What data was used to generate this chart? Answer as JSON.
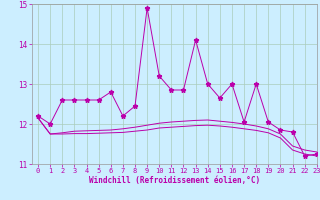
{
  "xlabel": "Windchill (Refroidissement éolien,°C)",
  "background_color": "#cceeff",
  "grid_color": "#aaccbb",
  "line_color": "#bb00aa",
  "xlim": [
    -0.5,
    23
  ],
  "ylim": [
    11,
    15
  ],
  "yticks": [
    11,
    12,
    13,
    14,
    15
  ],
  "xticks": [
    0,
    1,
    2,
    3,
    4,
    5,
    6,
    7,
    8,
    9,
    10,
    11,
    12,
    13,
    14,
    15,
    16,
    17,
    18,
    19,
    20,
    21,
    22,
    23
  ],
  "series1_x": [
    0,
    1,
    2,
    3,
    4,
    5,
    6,
    7,
    8,
    9,
    10,
    11,
    12,
    13,
    14,
    15,
    16,
    17,
    18,
    19,
    20,
    21,
    22,
    23
  ],
  "series1_y": [
    12.2,
    12.0,
    12.6,
    12.6,
    12.6,
    12.6,
    12.8,
    12.2,
    12.45,
    14.9,
    13.2,
    12.85,
    12.85,
    14.1,
    13.0,
    12.65,
    13.0,
    12.05,
    13.0,
    12.05,
    11.85,
    11.8,
    11.2,
    11.25
  ],
  "series2_x": [
    0,
    1,
    2,
    3,
    4,
    5,
    6,
    7,
    8,
    9,
    10,
    11,
    12,
    13,
    14,
    15,
    16,
    17,
    18,
    19,
    20,
    21,
    22,
    23
  ],
  "series2_y": [
    12.15,
    11.75,
    11.75,
    11.76,
    11.76,
    11.77,
    11.78,
    11.79,
    11.82,
    11.85,
    11.9,
    11.92,
    11.94,
    11.96,
    11.97,
    11.95,
    11.92,
    11.88,
    11.84,
    11.78,
    11.65,
    11.35,
    11.25,
    11.2
  ],
  "series3_x": [
    0,
    1,
    2,
    3,
    4,
    5,
    6,
    7,
    8,
    9,
    10,
    11,
    12,
    13,
    14,
    15,
    16,
    17,
    18,
    19,
    20,
    21,
    22,
    23
  ],
  "series3_y": [
    12.15,
    11.75,
    11.78,
    11.82,
    11.83,
    11.84,
    11.85,
    11.88,
    11.92,
    11.97,
    12.02,
    12.05,
    12.07,
    12.09,
    12.1,
    12.07,
    12.04,
    12.0,
    11.95,
    11.88,
    11.75,
    11.45,
    11.35,
    11.3
  ]
}
